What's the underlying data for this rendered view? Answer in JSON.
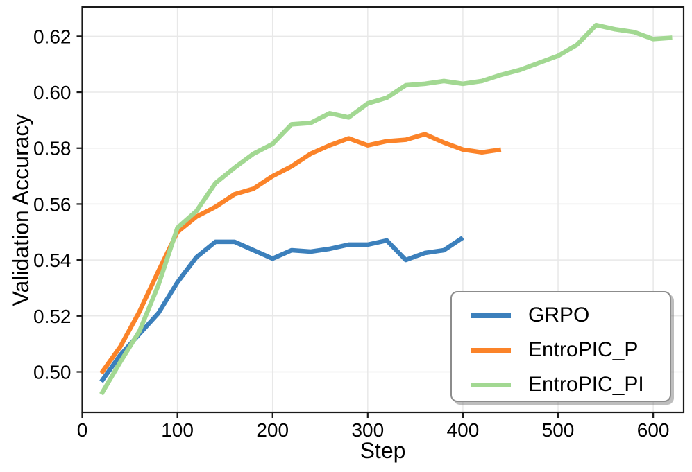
{
  "chart_data": {
    "type": "line",
    "title": "",
    "xlabel": "Step",
    "ylabel": "Validation Accuracy",
    "xlim": [
      0,
      632
    ],
    "ylim": [
      0.4855,
      0.6305
    ],
    "xticks": [
      0,
      100,
      200,
      300,
      400,
      500,
      600
    ],
    "yticks": [
      0.5,
      0.52,
      0.54,
      0.56,
      0.58,
      0.6,
      0.62
    ],
    "grid": true,
    "grid_color": "#e8e8e8",
    "spine_color": "#1a1a1a",
    "legend_position": "lower right",
    "series": [
      {
        "name": "GRPO",
        "color": "#3c80bc",
        "x": [
          20,
          40,
          60,
          80,
          100,
          120,
          140,
          160,
          180,
          200,
          220,
          240,
          260,
          280,
          300,
          320,
          340,
          360,
          380,
          400
        ],
        "y": [
          0.4965,
          0.506,
          0.5135,
          0.521,
          0.532,
          0.541,
          0.5465,
          0.5465,
          0.5435,
          0.5405,
          0.5435,
          0.543,
          0.544,
          0.5455,
          0.5455,
          0.547,
          0.54,
          0.5425,
          0.5435,
          0.548
        ]
      },
      {
        "name": "EntroPIC_P",
        "color": "#fb8329",
        "x": [
          20,
          40,
          60,
          80,
          100,
          120,
          140,
          160,
          180,
          200,
          220,
          240,
          260,
          280,
          300,
          320,
          340,
          360,
          380,
          400,
          420,
          440
        ],
        "y": [
          0.4995,
          0.509,
          0.5215,
          0.536,
          0.55,
          0.5555,
          0.559,
          0.5635,
          0.5655,
          0.57,
          0.5735,
          0.578,
          0.581,
          0.5835,
          0.581,
          0.5825,
          0.583,
          0.585,
          0.582,
          0.5795,
          0.5785,
          0.5795
        ]
      },
      {
        "name": "EntroPIC_PI",
        "color": "#a2d892",
        "x": [
          20,
          40,
          60,
          80,
          100,
          120,
          140,
          160,
          180,
          200,
          220,
          240,
          260,
          280,
          300,
          320,
          340,
          360,
          380,
          400,
          420,
          440,
          460,
          480,
          500,
          520,
          540,
          560,
          580,
          600,
          620
        ],
        "y": [
          0.492,
          0.5035,
          0.5145,
          0.531,
          0.5515,
          0.5575,
          0.5675,
          0.573,
          0.578,
          0.5815,
          0.5885,
          0.589,
          0.5925,
          0.591,
          0.596,
          0.598,
          0.6025,
          0.603,
          0.604,
          0.603,
          0.604,
          0.6062,
          0.608,
          0.6105,
          0.613,
          0.617,
          0.624,
          0.6225,
          0.6215,
          0.619,
          0.6195
        ]
      }
    ]
  }
}
